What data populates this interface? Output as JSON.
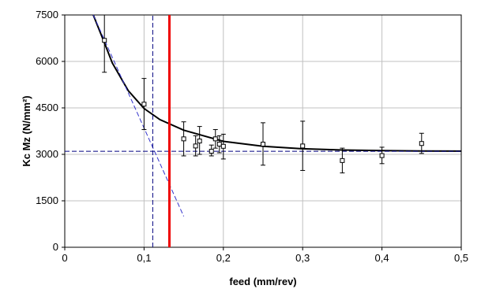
{
  "chart_data": {
    "type": "scatter",
    "title": "",
    "xlabel": "feed (mm/rev)",
    "ylabel": "Kc Mz (N/mm²)",
    "xlim": [
      0,
      0.5
    ],
    "ylim": [
      0,
      7500
    ],
    "x_ticks": [
      0,
      0.1,
      0.2,
      0.3,
      0.4,
      0.5
    ],
    "x_tick_labels": [
      "0",
      "0,1",
      "0,2",
      "0,3",
      "0,4",
      "0,5"
    ],
    "y_ticks": [
      0,
      1500,
      3000,
      4500,
      6000,
      7500
    ],
    "y_tick_labels": [
      "0",
      "1500",
      "3000",
      "4500",
      "6000",
      "7500"
    ],
    "grid": {
      "x": true,
      "y": true,
      "color": "#c0c0c0"
    },
    "legend": "none",
    "series": [
      {
        "kind": "points-with-error-bars",
        "marker": "open-square",
        "color": "#000000",
        "points": [
          {
            "x": 0.05,
            "y": 6680,
            "ymin": 5650,
            "ymax": 7550
          },
          {
            "x": 0.1,
            "y": 4620,
            "ymin": 3800,
            "ymax": 5450
          },
          {
            "x": 0.15,
            "y": 3500,
            "ymin": 2950,
            "ymax": 4050
          },
          {
            "x": 0.165,
            "y": 3270,
            "ymin": 2950,
            "ymax": 3600
          },
          {
            "x": 0.17,
            "y": 3430,
            "ymin": 3000,
            "ymax": 3900
          },
          {
            "x": 0.185,
            "y": 3100,
            "ymin": 2950,
            "ymax": 3300
          },
          {
            "x": 0.19,
            "y": 3500,
            "ymin": 3200,
            "ymax": 3800
          },
          {
            "x": 0.195,
            "y": 3330,
            "ymin": 3050,
            "ymax": 3600
          },
          {
            "x": 0.2,
            "y": 3260,
            "ymin": 2850,
            "ymax": 3650
          },
          {
            "x": 0.25,
            "y": 3330,
            "ymin": 2650,
            "ymax": 4020
          },
          {
            "x": 0.3,
            "y": 3270,
            "ymin": 2480,
            "ymax": 4070
          },
          {
            "x": 0.35,
            "y": 2800,
            "ymin": 2400,
            "ymax": 3200
          },
          {
            "x": 0.4,
            "y": 2960,
            "ymin": 2700,
            "ymax": 3230
          },
          {
            "x": 0.45,
            "y": 3350,
            "ymin": 3030,
            "ymax": 3680
          }
        ]
      },
      {
        "kind": "curve",
        "color": "#000000",
        "style": "solid",
        "points": [
          [
            0.036,
            7550
          ],
          [
            0.05,
            6600
          ],
          [
            0.06,
            5950
          ],
          [
            0.08,
            5060
          ],
          [
            0.1,
            4480
          ],
          [
            0.12,
            4120
          ],
          [
            0.15,
            3780
          ],
          [
            0.2,
            3420
          ],
          [
            0.25,
            3260
          ],
          [
            0.3,
            3180
          ],
          [
            0.35,
            3140
          ],
          [
            0.4,
            3120
          ],
          [
            0.45,
            3110
          ],
          [
            0.5,
            3105
          ]
        ]
      },
      {
        "kind": "line",
        "color": "#3333cc",
        "style": "dashed",
        "points": [
          [
            0.036,
            7550
          ],
          [
            0.15,
            1000
          ]
        ]
      },
      {
        "kind": "line",
        "color": "#000080",
        "style": "dashed",
        "points": [
          [
            0,
            3100
          ],
          [
            0.5,
            3100
          ]
        ]
      },
      {
        "kind": "line",
        "color": "#000080",
        "style": "dashed",
        "points": [
          [
            0.111,
            0
          ],
          [
            0.111,
            7500
          ]
        ]
      },
      {
        "kind": "line",
        "color": "#ee0000",
        "style": "solid",
        "points": [
          [
            0.132,
            0
          ],
          [
            0.132,
            7500
          ]
        ]
      }
    ]
  }
}
